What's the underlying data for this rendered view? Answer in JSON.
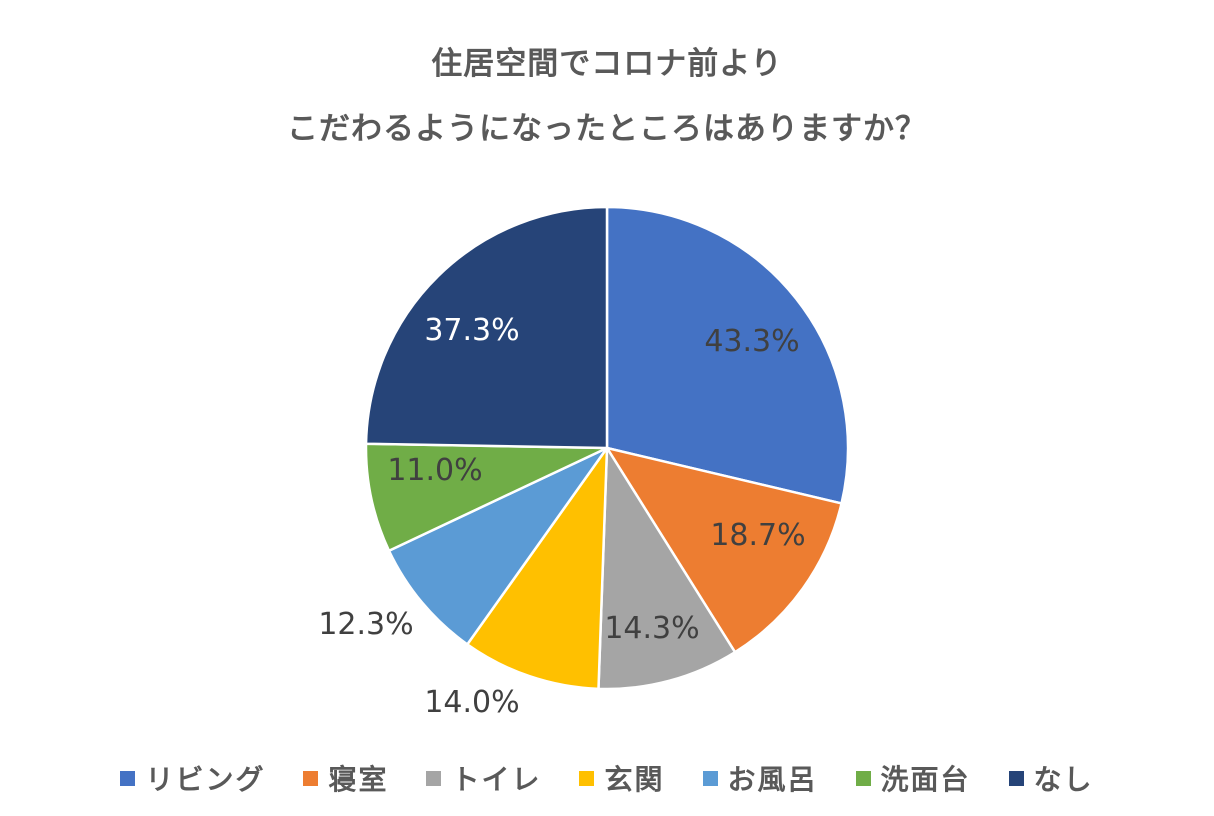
{
  "chart_data": {
    "type": "pie",
    "title_lines": [
      "住居空間でコロナ前より",
      "こだわるようになったところはありますか？"
    ],
    "slices": [
      {
        "name": "リビング",
        "value": 43.3,
        "label": "43.3%",
        "color": "#4472C4",
        "label_color": "#404040"
      },
      {
        "name": "寝室",
        "value": 18.7,
        "label": "18.7%",
        "color": "#ED7D31",
        "label_color": "#404040"
      },
      {
        "name": "トイレ",
        "value": 14.3,
        "label": "14.3%",
        "color": "#A5A5A5",
        "label_color": "#404040"
      },
      {
        "name": "玄関",
        "value": 14.0,
        "label": "14.0%",
        "color": "#FFC000",
        "label_color": "#404040"
      },
      {
        "name": "お風呂",
        "value": 12.3,
        "label": "12.3%",
        "color": "#5B9BD5",
        "label_color": "#404040"
      },
      {
        "name": "洗面台",
        "value": 11.0,
        "label": "11.0%",
        "color": "#70AD47",
        "label_color": "#404040"
      },
      {
        "name": "なし",
        "value": 37.3,
        "label": "37.3%",
        "color": "#264478",
        "label_color": "#ffffff"
      }
    ],
    "legend_position": "bottom"
  }
}
